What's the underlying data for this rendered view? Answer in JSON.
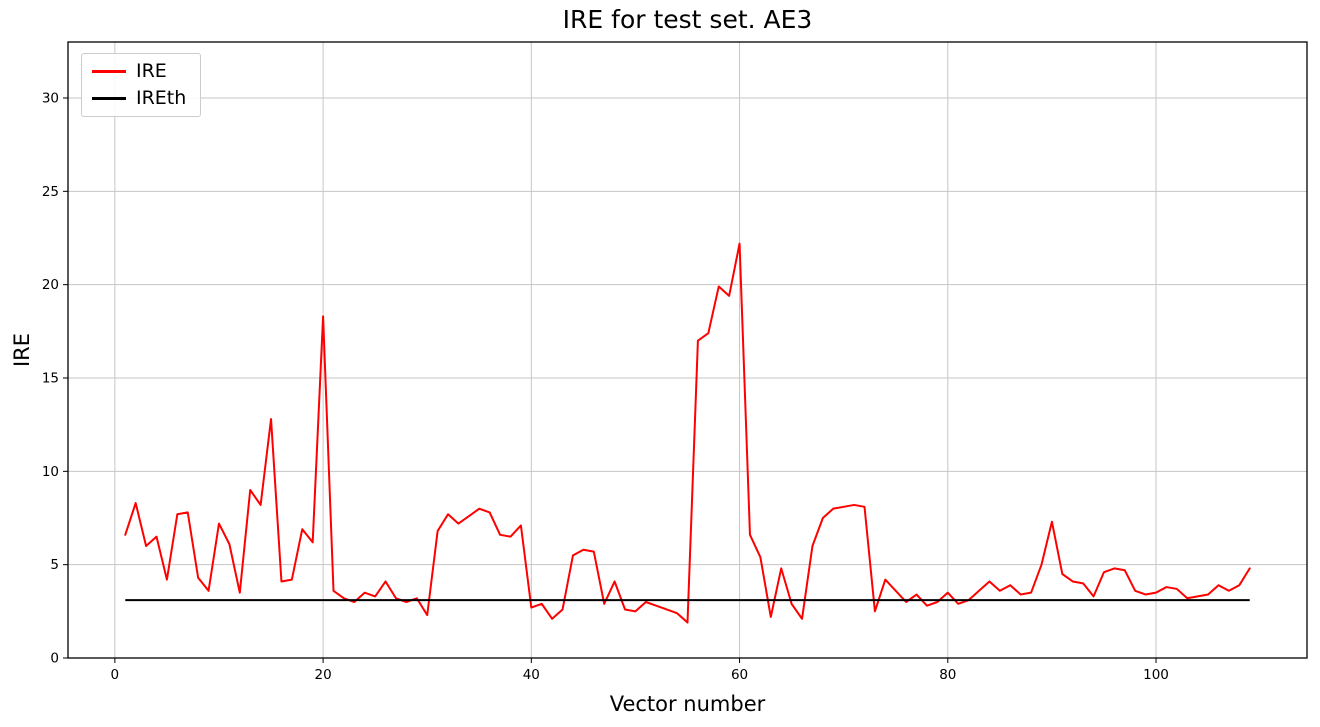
{
  "chart_data": {
    "type": "line",
    "title": "IRE for test set. AE3",
    "xlabel": "Vector number",
    "ylabel": "IRE",
    "xlim": [
      -4.5,
      114.5
    ],
    "ylim": [
      0,
      33
    ],
    "xticks": [
      0,
      20,
      40,
      60,
      80,
      100
    ],
    "yticks": [
      0,
      5,
      10,
      15,
      20,
      25,
      30
    ],
    "grid": true,
    "legend_position": "upper left",
    "series": [
      {
        "name": "IRE",
        "color": "#ff0000",
        "x_range": [
          1,
          109
        ],
        "x_step": 1,
        "values": [
          6.6,
          8.3,
          6.0,
          6.5,
          4.2,
          7.7,
          7.8,
          4.3,
          3.6,
          7.2,
          6.1,
          3.5,
          9.0,
          8.2,
          12.8,
          4.1,
          4.2,
          6.9,
          6.2,
          18.3,
          3.6,
          3.2,
          3.0,
          3.5,
          3.3,
          4.1,
          3.2,
          3.0,
          3.2,
          2.3,
          6.8,
          7.7,
          7.2,
          7.6,
          8.0,
          7.8,
          6.6,
          6.5,
          7.1,
          2.7,
          2.9,
          2.1,
          2.6,
          5.5,
          5.8,
          5.7,
          2.9,
          4.1,
          2.6,
          2.5,
          3.0,
          2.8,
          2.6,
          2.4,
          1.9,
          17.0,
          17.4,
          19.9,
          19.4,
          22.2,
          6.6,
          5.4,
          2.2,
          4.8,
          2.9,
          2.1,
          6.0,
          7.5,
          8.0,
          8.1,
          8.2,
          8.1,
          2.5,
          4.2,
          3.6,
          3.0,
          3.4,
          2.8,
          3.0,
          3.5,
          2.9,
          3.1,
          3.6,
          4.1,
          3.6,
          3.9,
          3.4,
          3.5,
          5.0,
          7.3,
          4.5,
          4.1,
          4.0,
          3.3,
          4.6,
          4.8,
          4.7,
          3.6,
          3.4,
          3.5,
          3.8,
          3.7,
          3.2,
          3.3,
          3.4,
          3.9,
          3.6,
          3.9,
          4.8
        ]
      },
      {
        "name": "IREth",
        "color": "#000000",
        "type": "hline",
        "value": 3.1,
        "x_range": [
          1,
          109
        ]
      }
    ]
  }
}
